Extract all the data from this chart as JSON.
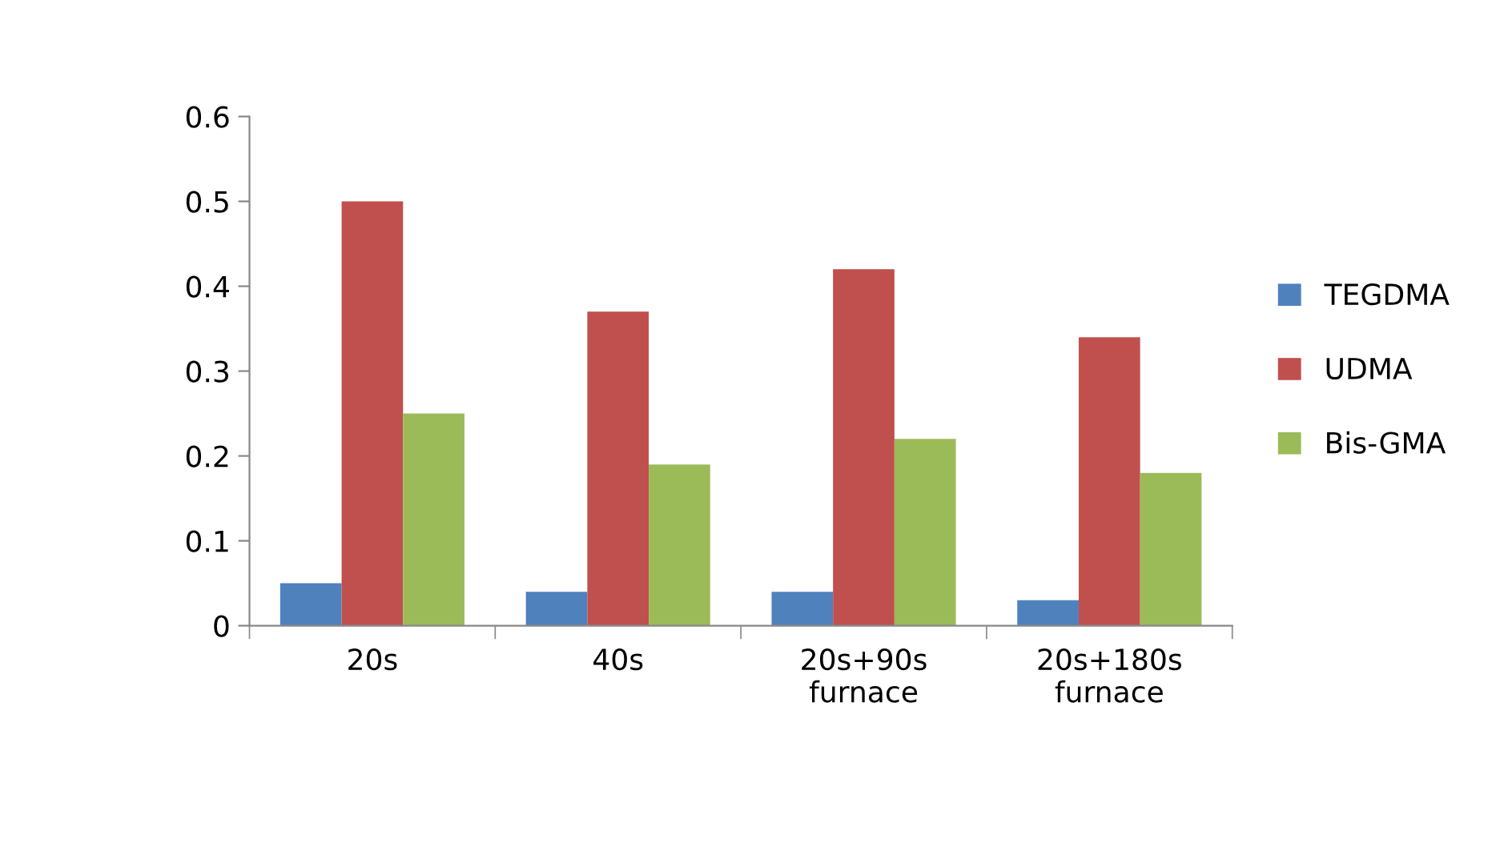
{
  "chart_data": {
    "type": "bar",
    "categories": [
      "20s",
      "40s",
      "20s+90s\nfurnace",
      "20s+180s\nfurnace"
    ],
    "series": [
      {
        "name": "TEGDMA",
        "color": "#4f81bd",
        "values": [
          0.05,
          0.04,
          0.04,
          0.03
        ]
      },
      {
        "name": "UDMA",
        "color": "#c0504d",
        "values": [
          0.5,
          0.37,
          0.42,
          0.34
        ]
      },
      {
        "name": "Bis-GMA",
        "color": "#9bbb59",
        "values": [
          0.25,
          0.19,
          0.22,
          0.18
        ]
      }
    ],
    "ylim": [
      0,
      0.6
    ],
    "yticks": [
      0,
      0.1,
      0.2,
      0.3,
      0.4,
      0.5,
      0.6
    ],
    "grid": false,
    "legend": "right"
  }
}
